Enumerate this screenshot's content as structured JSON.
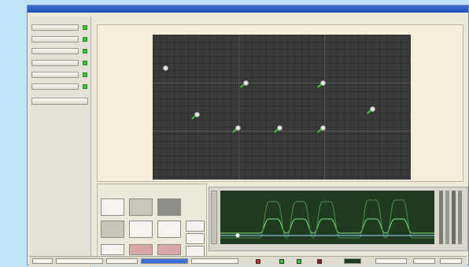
{
  "window": {
    "title": "",
    "menu": [
      "",
      "",
      "",
      "",
      "",
      ""
    ]
  },
  "left_panel": {
    "buttons": [
      {
        "label": "",
        "status_color": "#3bc43b"
      },
      {
        "label": "",
        "status_color": "#3bc43b"
      },
      {
        "label": "",
        "status_color": "#3bc43b"
      },
      {
        "label": "",
        "status_color": "#3bc43b"
      },
      {
        "label": "",
        "status_color": "#3bc43b"
      },
      {
        "label": "",
        "status_color": "#3bc43b"
      }
    ],
    "main_button": "",
    "info_text": ""
  },
  "camera_view": {
    "markers": [
      {
        "x": 0.05,
        "y": 0.23,
        "tick": false
      },
      {
        "x": 0.36,
        "y": 0.33,
        "tick": true
      },
      {
        "x": 0.66,
        "y": 0.33,
        "tick": true
      },
      {
        "x": 0.17,
        "y": 0.55,
        "tick": true
      },
      {
        "x": 0.85,
        "y": 0.51,
        "tick": true
      },
      {
        "x": 0.33,
        "y": 0.64,
        "tick": true
      },
      {
        "x": 0.49,
        "y": 0.64,
        "tick": true
      },
      {
        "x": 0.66,
        "y": 0.64,
        "tick": true
      }
    ]
  },
  "colors": {
    "accent": "#1f4fb8",
    "ok": "#3bc43b",
    "alarm": "#c62828",
    "waveform_bg": "#1f3a1f"
  },
  "status_bar": {
    "fields": [
      "",
      "",
      "",
      "",
      "",
      ""
    ]
  }
}
